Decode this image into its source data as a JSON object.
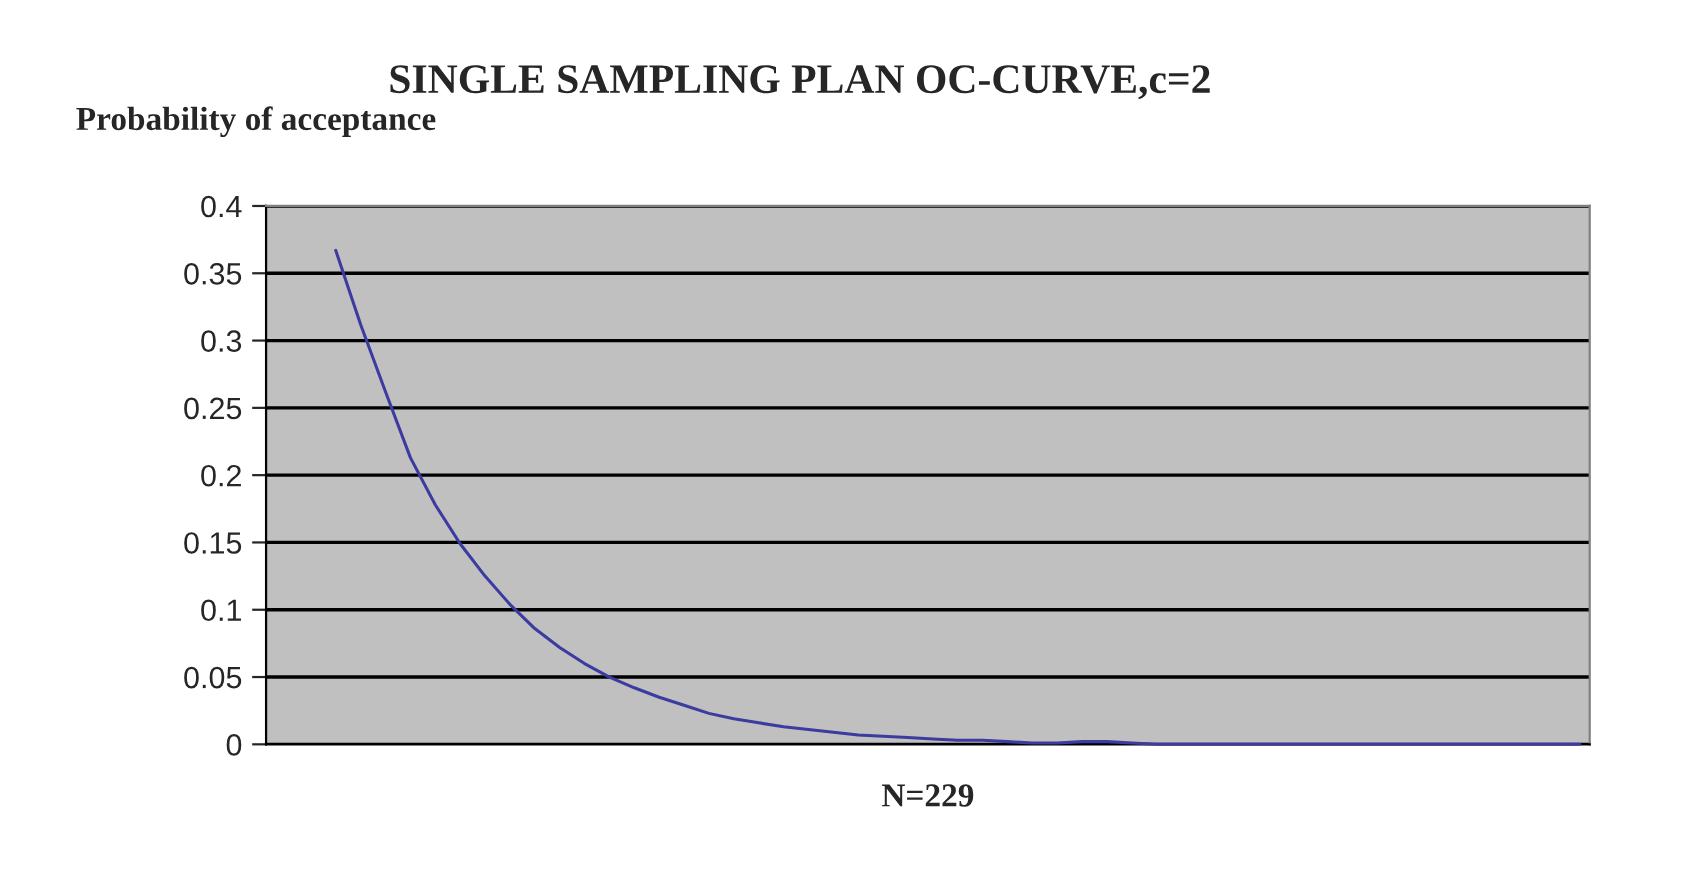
{
  "chart_data": {
    "type": "line",
    "title": "SINGLE SAMPLING PLAN OC-CURVE,c=2",
    "ylabel": "Probability of acceptance",
    "xlabel": "N=229",
    "categories": [
      null,
      null,
      null,
      null,
      null,
      null,
      null,
      null,
      null,
      null,
      null,
      null,
      null,
      null,
      null,
      null,
      null,
      null,
      null,
      null,
      null,
      null,
      null,
      null,
      null,
      null,
      null,
      null,
      null,
      null,
      null,
      null,
      null,
      null,
      null,
      null,
      null,
      null,
      null,
      null,
      null,
      null,
      null,
      null,
      null,
      null,
      null,
      null,
      null,
      null,
      null
    ],
    "series": [
      {
        "color": "#3b3ba0",
        "values": [
          0.367,
          0.312,
          0.262,
          0.213,
          0.178,
          0.149,
          0.125,
          0.104,
          0.086,
          0.072,
          0.06,
          0.05,
          0.042,
          0.035,
          0.029,
          0.023,
          0.019,
          0.016,
          0.013,
          0.011,
          0.009,
          0.007,
          0.006,
          0.005,
          0.004,
          0.003,
          0.003,
          0.002,
          0.001,
          0.001,
          0.002,
          0.002,
          0.001,
          0,
          0,
          0,
          0,
          0,
          0,
          0,
          0,
          0,
          0,
          0,
          0,
          0,
          0,
          0,
          0,
          0,
          0
        ]
      }
    ],
    "ylim": [
      0,
      0.4
    ],
    "yticks": [
      0,
      0.05,
      0.1,
      0.15,
      0.2,
      0.25,
      0.3,
      0.35,
      0.4
    ],
    "grid": "y",
    "legend": false,
    "marker": "none",
    "line_style": "solid",
    "tick_labels": "y"
  }
}
